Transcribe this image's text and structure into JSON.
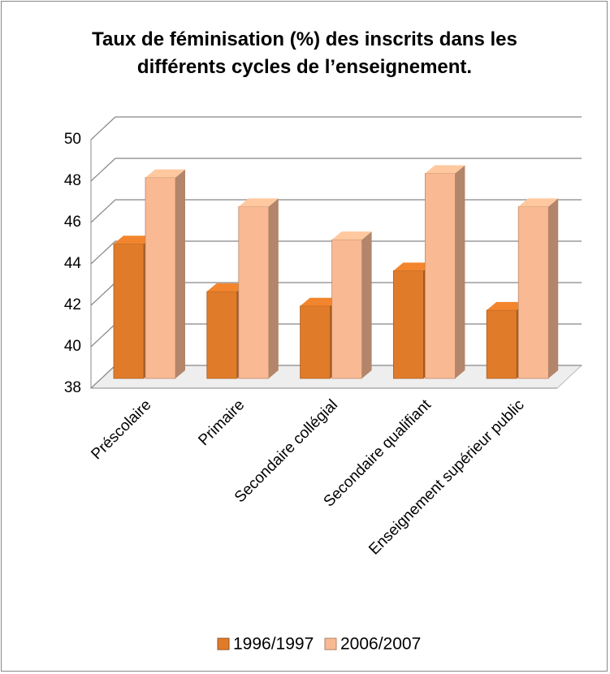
{
  "chart_data": {
    "type": "bar3d",
    "title": "Taux de féminisation (%) des inscrits dans les différents cycles de l’enseignement.",
    "categories": [
      "Préscolaire",
      "Primaire",
      "Secondaire collégial",
      "Secondaire qualifiant",
      "Enseignement supérieur public"
    ],
    "series": [
      {
        "name": "1996/1997",
        "color": "#e07b2a",
        "values": [
          44.5,
          42.2,
          41.5,
          43.2,
          41.3
        ]
      },
      {
        "name": "2006/2007",
        "color": "#f9b993",
        "values": [
          47.7,
          46.3,
          44.7,
          47.9,
          46.3
        ]
      }
    ],
    "ylim": [
      38,
      50
    ],
    "yticks": [
      38,
      40,
      42,
      44,
      46,
      48,
      50
    ],
    "grid": true,
    "legend": "bottom"
  }
}
